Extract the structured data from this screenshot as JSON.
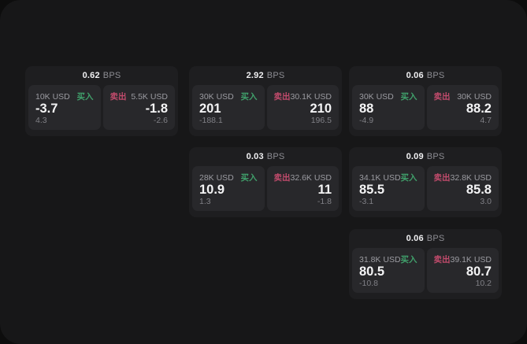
{
  "labels": {
    "bps_suffix": "BPS",
    "buy": "买入",
    "sell": "卖出"
  },
  "colors": {
    "buy_green": "#40a06b",
    "sell_red": "#c14b6c",
    "page_bg": "#171718",
    "card_bg": "#1e1e20",
    "panel_bg": "#28282b"
  },
  "cards": [
    {
      "bps": "0.62",
      "buy": {
        "size": "10K USD",
        "value": "-3.7",
        "sub": "4.3"
      },
      "sell": {
        "size": "5.5K USD",
        "value": "-1.8",
        "sub": "-2.6"
      }
    },
    {
      "bps": "2.92",
      "buy": {
        "size": "30K USD",
        "value": "201",
        "sub": "-188.1"
      },
      "sell": {
        "size": "30.1K USD",
        "value": "210",
        "sub": "196.5"
      }
    },
    {
      "bps": "0.06",
      "buy": {
        "size": "30K USD",
        "value": "88",
        "sub": "-4.9"
      },
      "sell": {
        "size": "30K USD",
        "value": "88.2",
        "sub": "4.7"
      }
    },
    {
      "bps": "0.03",
      "buy": {
        "size": "28K USD",
        "value": "10.9",
        "sub": "1.3"
      },
      "sell": {
        "size": "32.6K USD",
        "value": "11",
        "sub": "-1.8"
      }
    },
    {
      "bps": "0.09",
      "buy": {
        "size": "34.1K USD",
        "value": "85.5",
        "sub": "-3.1"
      },
      "sell": {
        "size": "32.8K USD",
        "value": "85.8",
        "sub": "3.0"
      }
    },
    {
      "bps": "0.06",
      "buy": {
        "size": "31.8K USD",
        "value": "80.5",
        "sub": "-10.8"
      },
      "sell": {
        "size": "39.1K USD",
        "value": "80.7",
        "sub": "10.2"
      }
    }
  ]
}
